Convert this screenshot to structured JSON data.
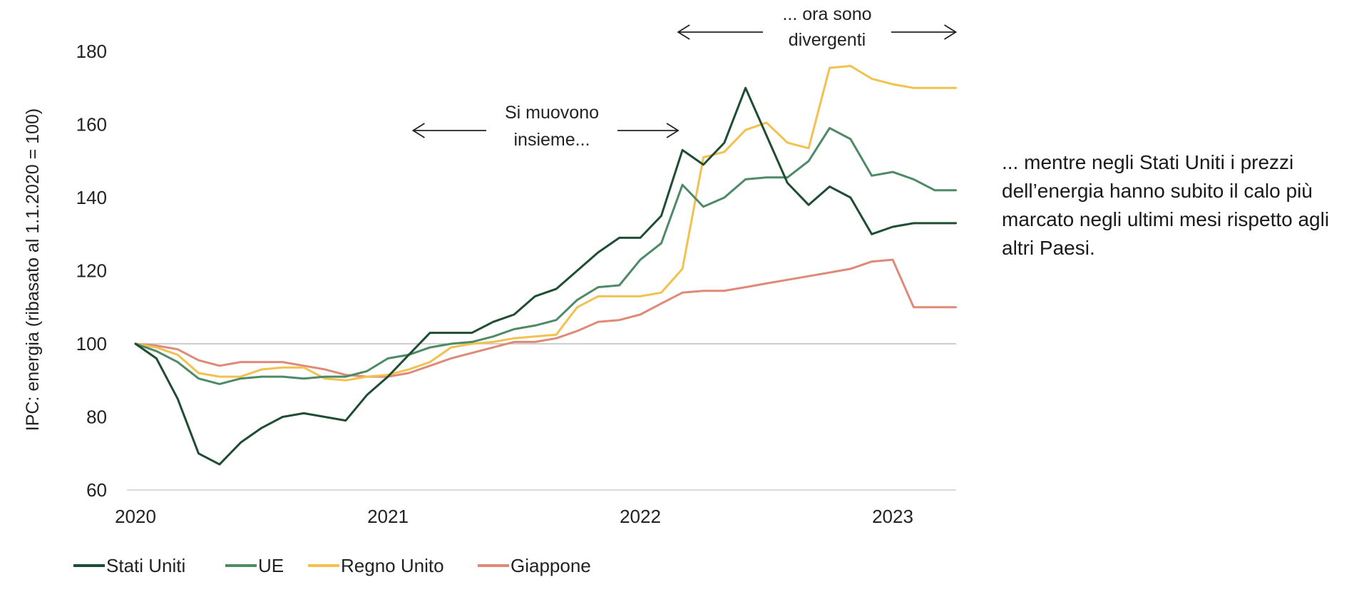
{
  "chart_data": {
    "type": "line",
    "title": "",
    "ylabel": "IPC: energia (ribasato al 1.1.2020 = 100)",
    "xlabel": "",
    "x_ticks": [
      "2020",
      "2021",
      "2022",
      "2023"
    ],
    "xlim": [
      2020.0,
      2023.25
    ],
    "y_ticks": [
      60,
      80,
      100,
      120,
      140,
      160,
      180
    ],
    "ylim": [
      60,
      182
    ],
    "reference_line": 100,
    "grid": false,
    "legend_position": "bottom-left",
    "series": [
      {
        "name": "Stati Uniti",
        "color": "#1e4d33",
        "x": [
          2020.0,
          2020.083,
          2020.167,
          2020.25,
          2020.333,
          2020.417,
          2020.5,
          2020.583,
          2020.667,
          2020.75,
          2020.833,
          2020.917,
          2021.0,
          2021.083,
          2021.167,
          2021.25,
          2021.333,
          2021.417,
          2021.5,
          2021.583,
          2021.667,
          2021.75,
          2021.833,
          2021.917,
          2022.0,
          2022.083,
          2022.167,
          2022.25,
          2022.333,
          2022.417,
          2022.5,
          2022.583,
          2022.667,
          2022.75,
          2022.833,
          2022.917,
          2023.0,
          2023.083,
          2023.167,
          2023.25
        ],
        "values": [
          100,
          96,
          85,
          70,
          67,
          73,
          77,
          80,
          81,
          80,
          79,
          86,
          91,
          97,
          103,
          103,
          103,
          106,
          108,
          113,
          115,
          120,
          125,
          129,
          129,
          135,
          153,
          149,
          155,
          170,
          157,
          144,
          138,
          143,
          140,
          130,
          132,
          133,
          133,
          133
        ]
      },
      {
        "name": "UE",
        "color": "#4e8a66",
        "x": [
          2020.0,
          2020.083,
          2020.167,
          2020.25,
          2020.333,
          2020.417,
          2020.5,
          2020.583,
          2020.667,
          2020.75,
          2020.833,
          2020.917,
          2021.0,
          2021.083,
          2021.167,
          2021.25,
          2021.333,
          2021.417,
          2021.5,
          2021.583,
          2021.667,
          2021.75,
          2021.833,
          2021.917,
          2022.0,
          2022.083,
          2022.167,
          2022.25,
          2022.333,
          2022.417,
          2022.5,
          2022.583,
          2022.667,
          2022.75,
          2022.833,
          2022.917,
          2023.0,
          2023.083,
          2023.167,
          2023.25
        ],
        "values": [
          100,
          98,
          95,
          90.5,
          89,
          90.5,
          91,
          91,
          90.5,
          91,
          91,
          92.5,
          96,
          97,
          99,
          100,
          100.5,
          102,
          104,
          105,
          106.5,
          112,
          115.5,
          116,
          123,
          127.5,
          143.5,
          137.5,
          140,
          145,
          145.5,
          145.5,
          150,
          159,
          156,
          146,
          147,
          145,
          142,
          142
        ]
      },
      {
        "name": "Regno Unito",
        "color": "#f2c14e",
        "x": [
          2020.0,
          2020.083,
          2020.167,
          2020.25,
          2020.333,
          2020.417,
          2020.5,
          2020.583,
          2020.667,
          2020.75,
          2020.833,
          2020.917,
          2021.0,
          2021.083,
          2021.167,
          2021.25,
          2021.333,
          2021.417,
          2021.5,
          2021.583,
          2021.667,
          2021.75,
          2021.833,
          2021.917,
          2022.0,
          2022.083,
          2022.167,
          2022.25,
          2022.333,
          2022.417,
          2022.5,
          2022.583,
          2022.667,
          2022.75,
          2022.833,
          2022.917,
          2023.0,
          2023.083,
          2023.167,
          2023.25
        ],
        "values": [
          100,
          99,
          97,
          92,
          91,
          91,
          93,
          93.5,
          93.5,
          90.5,
          90,
          91,
          91.5,
          93,
          95,
          99,
          100,
          100.5,
          101.5,
          102,
          102.5,
          110,
          113,
          113,
          113,
          114,
          120.5,
          151,
          152.5,
          158.5,
          160.5,
          155,
          153.5,
          175.5,
          176,
          172.5,
          171,
          170,
          170,
          170
        ]
      },
      {
        "name": "Giappone",
        "color": "#df8a78",
        "x": [
          2020.0,
          2020.083,
          2020.167,
          2020.25,
          2020.333,
          2020.417,
          2020.5,
          2020.583,
          2020.667,
          2020.75,
          2020.833,
          2020.917,
          2021.0,
          2021.083,
          2021.167,
          2021.25,
          2021.333,
          2021.417,
          2021.5,
          2021.583,
          2021.667,
          2021.75,
          2021.833,
          2021.917,
          2022.0,
          2022.083,
          2022.167,
          2022.25,
          2022.333,
          2022.417,
          2022.5,
          2022.583,
          2022.667,
          2022.75,
          2022.833,
          2022.917,
          2023.0,
          2023.083,
          2023.167,
          2023.25
        ],
        "values": [
          100,
          99.5,
          98.5,
          95.5,
          94,
          95,
          95,
          95,
          94,
          93,
          91.5,
          91,
          91,
          92,
          94,
          96,
          97.5,
          99,
          100.5,
          100.5,
          101.5,
          103.5,
          106,
          106.5,
          108,
          111,
          114,
          114.5,
          114.5,
          115.5,
          116.5,
          117.5,
          118.5,
          119.5,
          120.5,
          122.5,
          123,
          110,
          110,
          110
        ]
      }
    ],
    "annotations": [
      {
        "lines": [
          "Si muovono",
          "insieme..."
        ],
        "x_from": 2021.1,
        "x_to": 2022.15
      },
      {
        "lines": [
          "... ora sono",
          "divergenti"
        ],
        "x_from": 2022.15,
        "x_to": 2023.25
      }
    ]
  },
  "side_note": "... mentre negli Stati Uniti i prezzi dell’energia hanno subito il calo più marcato negli ultimi mesi rispetto agli altri Paesi."
}
